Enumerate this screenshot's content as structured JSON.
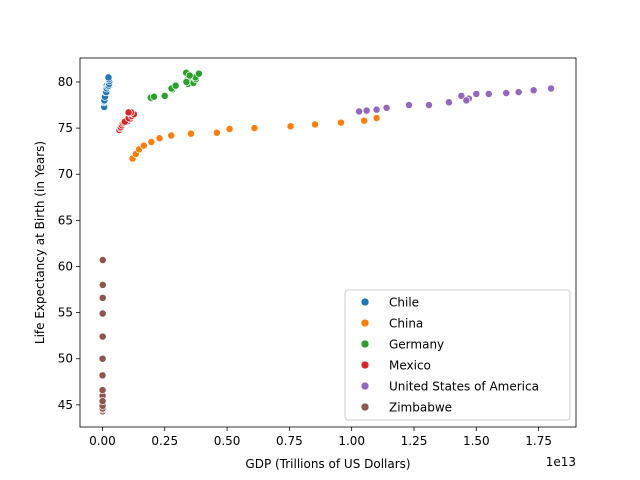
{
  "chart_data": {
    "type": "scatter",
    "title": "",
    "xlabel": "GDP (Trillions of US Dollars)",
    "ylabel": "Life Expectancy at Birth (in Years)",
    "x_offset_label": "1e13",
    "xlim": [
      -0.09,
      1.9
    ],
    "ylim": [
      42.6,
      82.6
    ],
    "x_ticks": [
      0.0,
      0.25,
      0.5,
      0.75,
      1.0,
      1.25,
      1.5,
      1.75
    ],
    "x_tick_labels": [
      "0.00",
      "0.25",
      "0.50",
      "0.75",
      "1.00",
      "1.25",
      "1.50",
      "1.75"
    ],
    "y_ticks": [
      45,
      50,
      55,
      60,
      65,
      70,
      75,
      80
    ],
    "y_tick_labels": [
      "45",
      "50",
      "55",
      "60",
      "65",
      "70",
      "75",
      "80"
    ],
    "grid": false,
    "legend_position": "bottom-right",
    "series": [
      {
        "name": "Chile",
        "color": "#1f77b4",
        "x": [
          0.0078,
          0.0071,
          0.0067,
          0.007,
          0.0077,
          0.01,
          0.0122,
          0.0154,
          0.0173,
          0.0172,
          0.0218,
          0.0252,
          0.0267,
          0.0278,
          0.0259,
          0.0243
        ],
        "y": [
          77.3,
          77.3,
          77.8,
          77.9,
          78.0,
          78.4,
          78.9,
          78.9,
          79.6,
          79.3,
          79.5,
          79.6,
          79.8,
          80.1,
          80.3,
          80.5
        ]
      },
      {
        "name": "China",
        "color": "#ff7f0e",
        "x": [
          0.121,
          0.134,
          0.147,
          0.166,
          0.196,
          0.229,
          0.276,
          0.355,
          0.459,
          0.51,
          0.61,
          0.755,
          0.853,
          0.957,
          1.05,
          1.1
        ],
        "y": [
          71.7,
          72.2,
          72.7,
          73.1,
          73.5,
          73.9,
          74.2,
          74.4,
          74.5,
          74.9,
          75.0,
          75.2,
          75.4,
          75.6,
          75.8,
          76.1
        ]
      },
      {
        "name": "Germany",
        "color": "#2ca02c",
        "x": [
          0.195,
          0.194,
          0.207,
          0.25,
          0.281,
          0.277,
          0.294,
          0.343,
          0.365,
          0.34,
          0.375,
          0.373,
          0.387,
          0.336,
          0.35,
          0.337
        ],
        "y": [
          78.2,
          78.3,
          78.4,
          78.5,
          79.2,
          79.3,
          79.6,
          79.8,
          79.9,
          80.2,
          80.3,
          80.5,
          80.9,
          81.0,
          80.7,
          80.0
        ]
      },
      {
        "name": "Mexico",
        "color": "#d62728",
        "x": [
          0.068,
          0.072,
          0.074,
          0.078,
          0.082,
          0.087,
          0.097,
          0.103,
          0.11,
          0.09,
          0.105,
          0.117,
          0.126,
          0.11,
          0.115,
          0.105
        ],
        "y": [
          74.8,
          75.0,
          75.1,
          75.3,
          75.5,
          75.6,
          75.7,
          75.8,
          76.0,
          75.7,
          76.1,
          76.3,
          76.5,
          76.6,
          76.7,
          76.7
        ]
      },
      {
        "name": "United States of America",
        "color": "#9467bd",
        "x": [
          1.03,
          1.06,
          1.1,
          1.14,
          1.23,
          1.31,
          1.39,
          1.44,
          1.47,
          1.5,
          1.55,
          1.62,
          1.67,
          1.73,
          1.8,
          1.46
        ],
        "y": [
          76.8,
          76.9,
          77.0,
          77.2,
          77.5,
          77.5,
          77.8,
          78.5,
          78.2,
          78.7,
          78.7,
          78.8,
          78.9,
          79.1,
          79.3,
          78.0
        ]
      },
      {
        "name": "Zimbabwe",
        "color": "#8c564b",
        "x": [
          0.0007,
          0.0007,
          0.0007,
          0.0006,
          0.0006,
          0.0006,
          0.0006,
          0.0006,
          0.0005,
          0.0004,
          0.0006,
          0.0009,
          0.001,
          0.0012,
          0.0014,
          0.0014
        ],
        "y": [
          46.0,
          45.3,
          44.6,
          44.3,
          44.5,
          44.6,
          44.9,
          45.4,
          46.6,
          48.2,
          50.0,
          52.4,
          54.9,
          56.6,
          58.0,
          60.7
        ]
      }
    ]
  }
}
